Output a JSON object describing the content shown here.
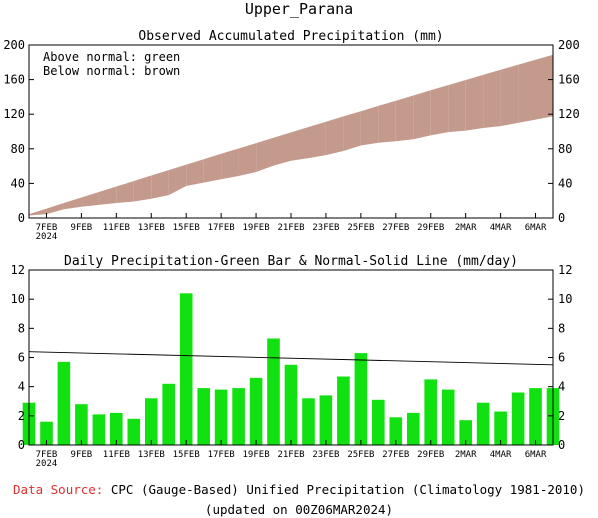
{
  "title": "Upper_Parana",
  "colors": {
    "above": "#00cc00",
    "below": "#c49a8d",
    "bar": "#11e011",
    "source_label": "#e03030"
  },
  "x_ticks": [
    {
      "day": 0,
      "label": "7FEB",
      "sub": "2024"
    },
    {
      "day": 2,
      "label": "9FEB"
    },
    {
      "day": 4,
      "label": "11FEB"
    },
    {
      "day": 6,
      "label": "13FEB"
    },
    {
      "day": 8,
      "label": "15FEB"
    },
    {
      "day": 10,
      "label": "17FEB"
    },
    {
      "day": 12,
      "label": "19FEB"
    },
    {
      "day": 14,
      "label": "21FEB"
    },
    {
      "day": 16,
      "label": "23FEB"
    },
    {
      "day": 18,
      "label": "25FEB"
    },
    {
      "day": 20,
      "label": "27FEB"
    },
    {
      "day": 22,
      "label": "29FEB"
    },
    {
      "day": 24,
      "label": "2MAR"
    },
    {
      "day": 26,
      "label": "4MAR"
    },
    {
      "day": 28,
      "label": "6MAR"
    }
  ],
  "chart_data": [
    {
      "type": "area",
      "title": "Observed Accumulated Precipitation (mm)",
      "legend": [
        "Above normal: green",
        "Below normal: brown"
      ],
      "ylim": [
        0,
        200
      ],
      "yticks": [
        0,
        40,
        80,
        120,
        160,
        200
      ],
      "xlim": [
        -1,
        29
      ],
      "series": [
        {
          "name": "Normal",
          "x": [
            -1,
            0,
            1,
            2,
            3,
            4,
            5,
            6,
            7,
            8,
            9,
            10,
            11,
            12,
            13,
            14,
            15,
            16,
            17,
            18,
            19,
            20,
            21,
            22,
            23,
            24,
            25,
            26,
            27,
            28,
            29
          ],
          "values": [
            4.5,
            10.9,
            17.3,
            23.7,
            30.1,
            36.4,
            42.8,
            49.1,
            55.4,
            61.7,
            67.9,
            74.2,
            80.4,
            86.6,
            92.8,
            99.0,
            105.2,
            111.3,
            117.4,
            123.5,
            129.6,
            135.6,
            141.6,
            147.6,
            153.6,
            159.5,
            165.4,
            171.3,
            177.2,
            183.0,
            188.8
          ]
        },
        {
          "name": "Observed",
          "x": [
            -1,
            0,
            1,
            2,
            3,
            4,
            5,
            6,
            7,
            8,
            9,
            10,
            11,
            12,
            13,
            14,
            15,
            16,
            17,
            18,
            19,
            20,
            21,
            22,
            23,
            24,
            25,
            26,
            27,
            28,
            29
          ],
          "values": [
            2.9,
            4.5,
            10.2,
            13.0,
            15.1,
            17.3,
            19.1,
            22.3,
            26.5,
            37.0,
            40.9,
            44.7,
            48.6,
            53.2,
            60.6,
            66.1,
            69.3,
            72.7,
            77.4,
            83.8,
            86.9,
            88.8,
            91.0,
            95.5,
            99.3,
            101.0,
            104.0,
            106.3,
            109.9,
            113.8,
            117.7
          ]
        }
      ]
    },
    {
      "type": "bar",
      "title": "Daily Precipitation-Green Bar & Normal-Solid Line (mm/day)",
      "ylim": [
        0,
        12
      ],
      "yticks": [
        0,
        2,
        4,
        6,
        8,
        10,
        12
      ],
      "xlim": [
        -1,
        29
      ],
      "x": [
        -1,
        0,
        1,
        2,
        3,
        4,
        5,
        6,
        7,
        8,
        9,
        10,
        11,
        12,
        13,
        14,
        15,
        16,
        17,
        18,
        19,
        20,
        21,
        22,
        23,
        24,
        25,
        26,
        27,
        28,
        29
      ],
      "values": [
        2.9,
        1.6,
        5.7,
        2.8,
        2.1,
        2.2,
        1.8,
        3.2,
        4.2,
        10.4,
        3.9,
        3.8,
        3.9,
        4.6,
        7.3,
        5.5,
        3.2,
        3.4,
        4.7,
        6.3,
        3.1,
        1.9,
        2.2,
        4.5,
        3.8,
        1.7,
        2.9,
        2.3,
        3.6,
        3.9,
        3.9
      ],
      "normal_line": {
        "x": [
          -1,
          29
        ],
        "values": [
          6.4,
          5.5
        ]
      }
    }
  ],
  "footer": {
    "source_label": "Data Source:",
    "source_text": " CPC (Gauge-Based) Unified Precipitation (Climatology 1981-2010)",
    "updated": "(updated on 00Z06MAR2024)"
  }
}
